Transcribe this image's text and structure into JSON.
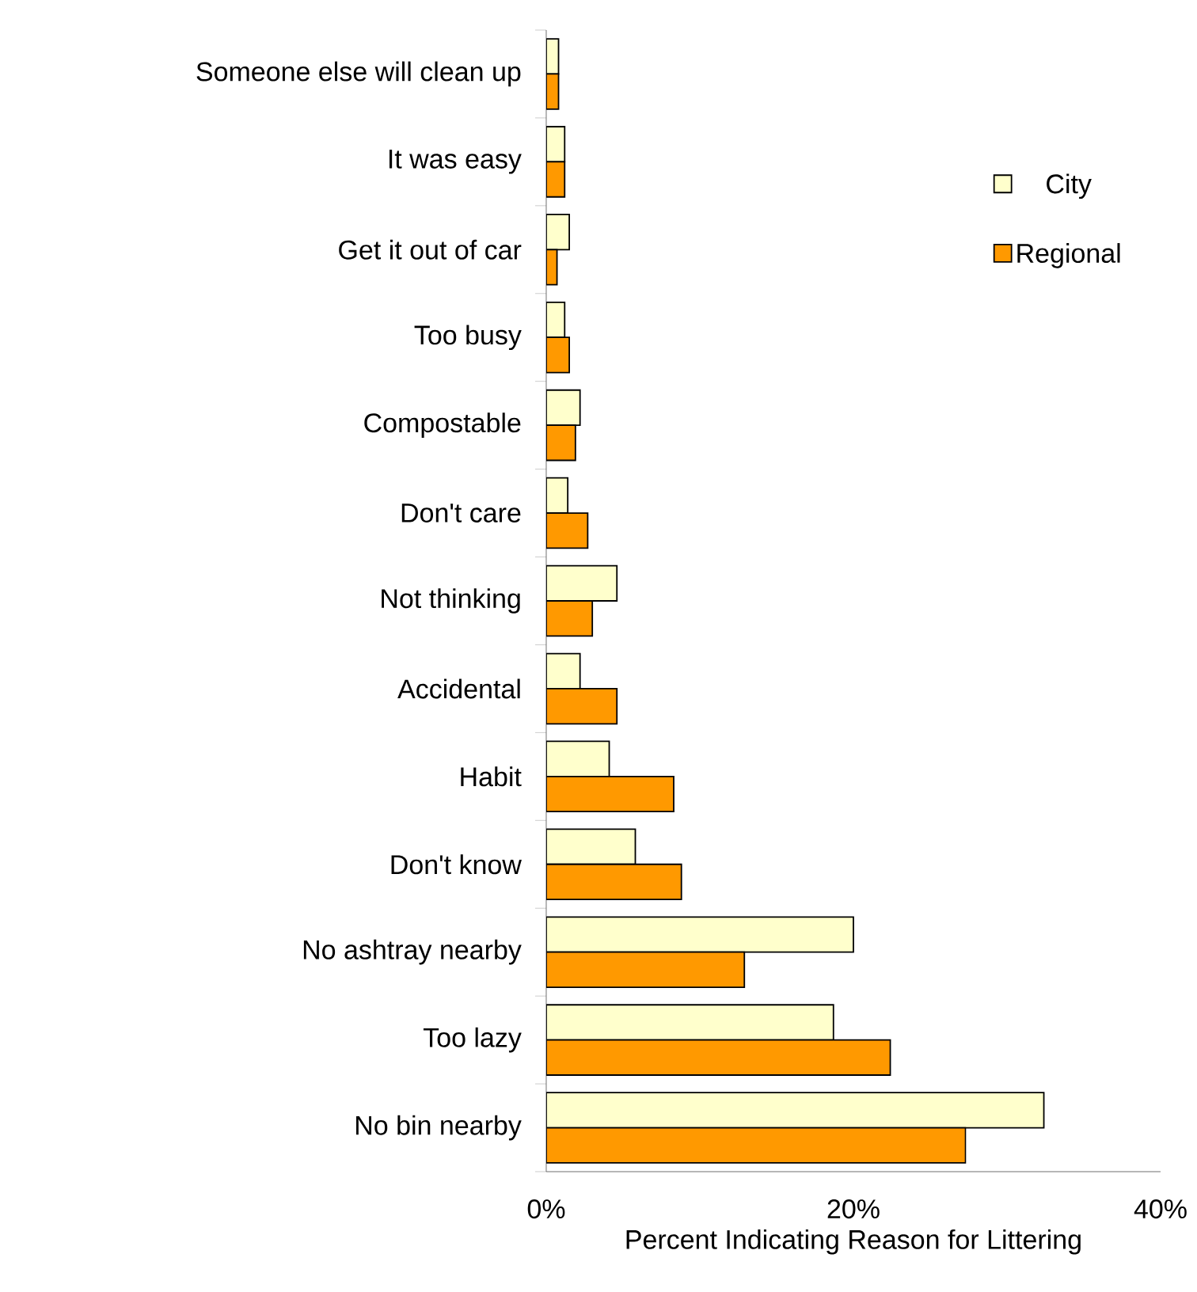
{
  "chart_data": {
    "type": "bar",
    "orientation": "horizontal",
    "xlabel": "Percent Indicating Reason for Littering",
    "categories": [
      "Someone else will clean up",
      "It was easy",
      "Get it out of car",
      "Too busy",
      "Compostable",
      "Don't care",
      "Not thinking",
      "Accidental",
      "Habit",
      "Don't know",
      "No ashtray nearby",
      "Too lazy",
      "No bin nearby"
    ],
    "series": [
      {
        "name": "City",
        "color": "#ffffcc",
        "values": [
          0.8,
          1.2,
          1.5,
          1.2,
          2.2,
          1.4,
          4.6,
          2.2,
          4.1,
          5.8,
          20.0,
          18.7,
          32.4
        ]
      },
      {
        "name": "Regional",
        "color": "#ff9900",
        "values": [
          0.8,
          1.2,
          0.7,
          1.5,
          1.9,
          2.7,
          3.0,
          4.6,
          8.3,
          8.8,
          12.9,
          22.4,
          27.3
        ]
      }
    ],
    "xlim": [
      0,
      40
    ],
    "xticks": [
      {
        "value": 0,
        "label": "0%"
      },
      {
        "value": 20,
        "label": "20%"
      },
      {
        "value": 40,
        "label": "40%"
      }
    ],
    "grid": false,
    "legend": "top right"
  }
}
